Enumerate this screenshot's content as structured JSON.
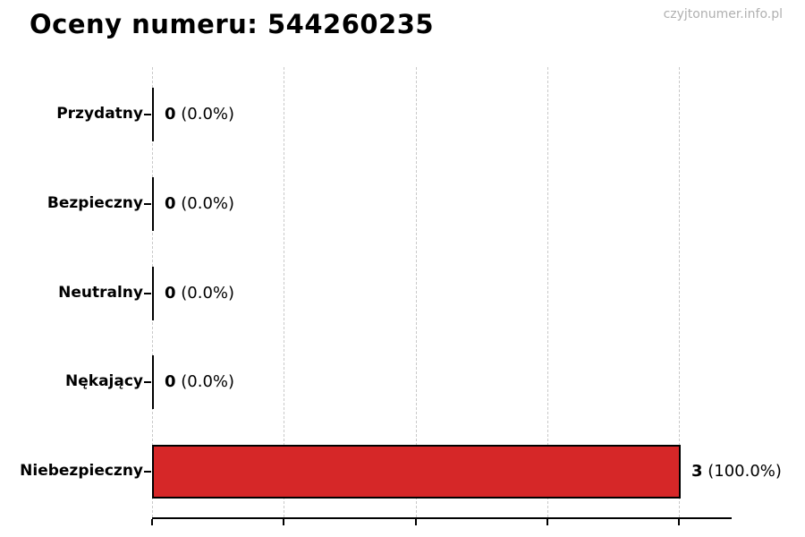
{
  "watermark": "czyjtonumer.info.pl",
  "chart_data": {
    "type": "bar",
    "orientation": "horizontal",
    "title": "Oceny numeru: 544260235",
    "categories": [
      "Przydatny",
      "Bezpieczny",
      "Neutralny",
      "Nękający",
      "Niebezpieczny"
    ],
    "values": [
      0,
      0,
      0,
      0,
      3
    ],
    "value_labels": [
      "0",
      "0",
      "0",
      "0",
      "3"
    ],
    "percent_labels": [
      "(0.0%)",
      "(0.0%)",
      "(0.0%)",
      "(0.0%)",
      "(100.0%)"
    ],
    "bar_color": "#d62728",
    "bar_edge_color": "#000000",
    "xlim": [
      0,
      3.3
    ],
    "xticks": [
      0,
      0.75,
      1.5,
      2.25,
      3.0
    ],
    "xtick_labels_visible": false,
    "ylabel": "",
    "xlabel": "",
    "grid": "vertical-dashed",
    "gridline_color": "#c9c9c9",
    "legend": "none"
  }
}
